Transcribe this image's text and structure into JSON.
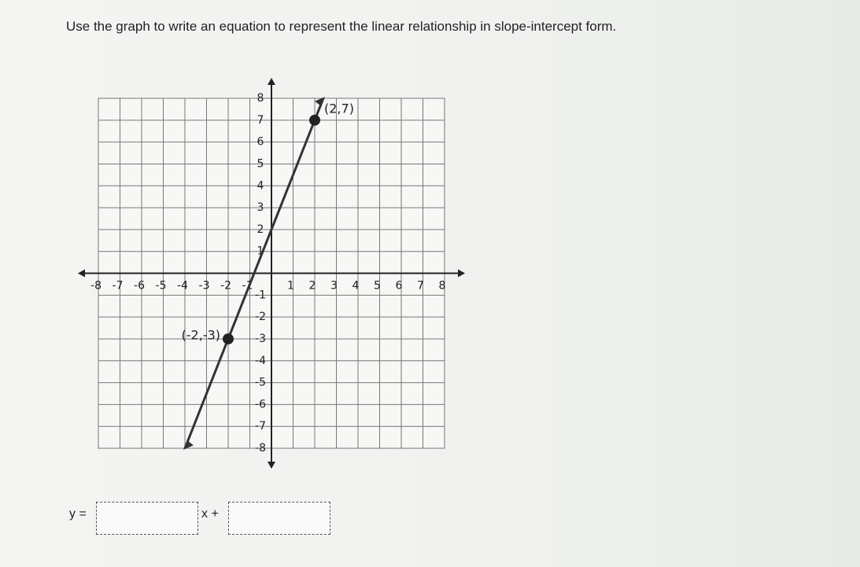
{
  "question": "Use the graph to write an equation to represent the linear relationship in slope-intercept form.",
  "graph": {
    "xlim": [
      -8,
      8
    ],
    "ylim": [
      -8,
      8
    ],
    "xticks": [
      -8,
      -7,
      -6,
      -5,
      -4,
      -3,
      -2,
      -1,
      1,
      2,
      3,
      4,
      5,
      6,
      7,
      8
    ],
    "yticks": [
      -8,
      -7,
      -6,
      -5,
      -4,
      -3,
      -2,
      -1,
      1,
      2,
      3,
      4,
      5,
      6,
      7,
      8
    ],
    "points": [
      {
        "label": "(2,7)",
        "x": 2,
        "y": 7
      },
      {
        "label": "(-2,-3)",
        "x": -2,
        "y": -3
      }
    ]
  },
  "answer": {
    "prefix": "y =",
    "middle": "x +"
  }
}
